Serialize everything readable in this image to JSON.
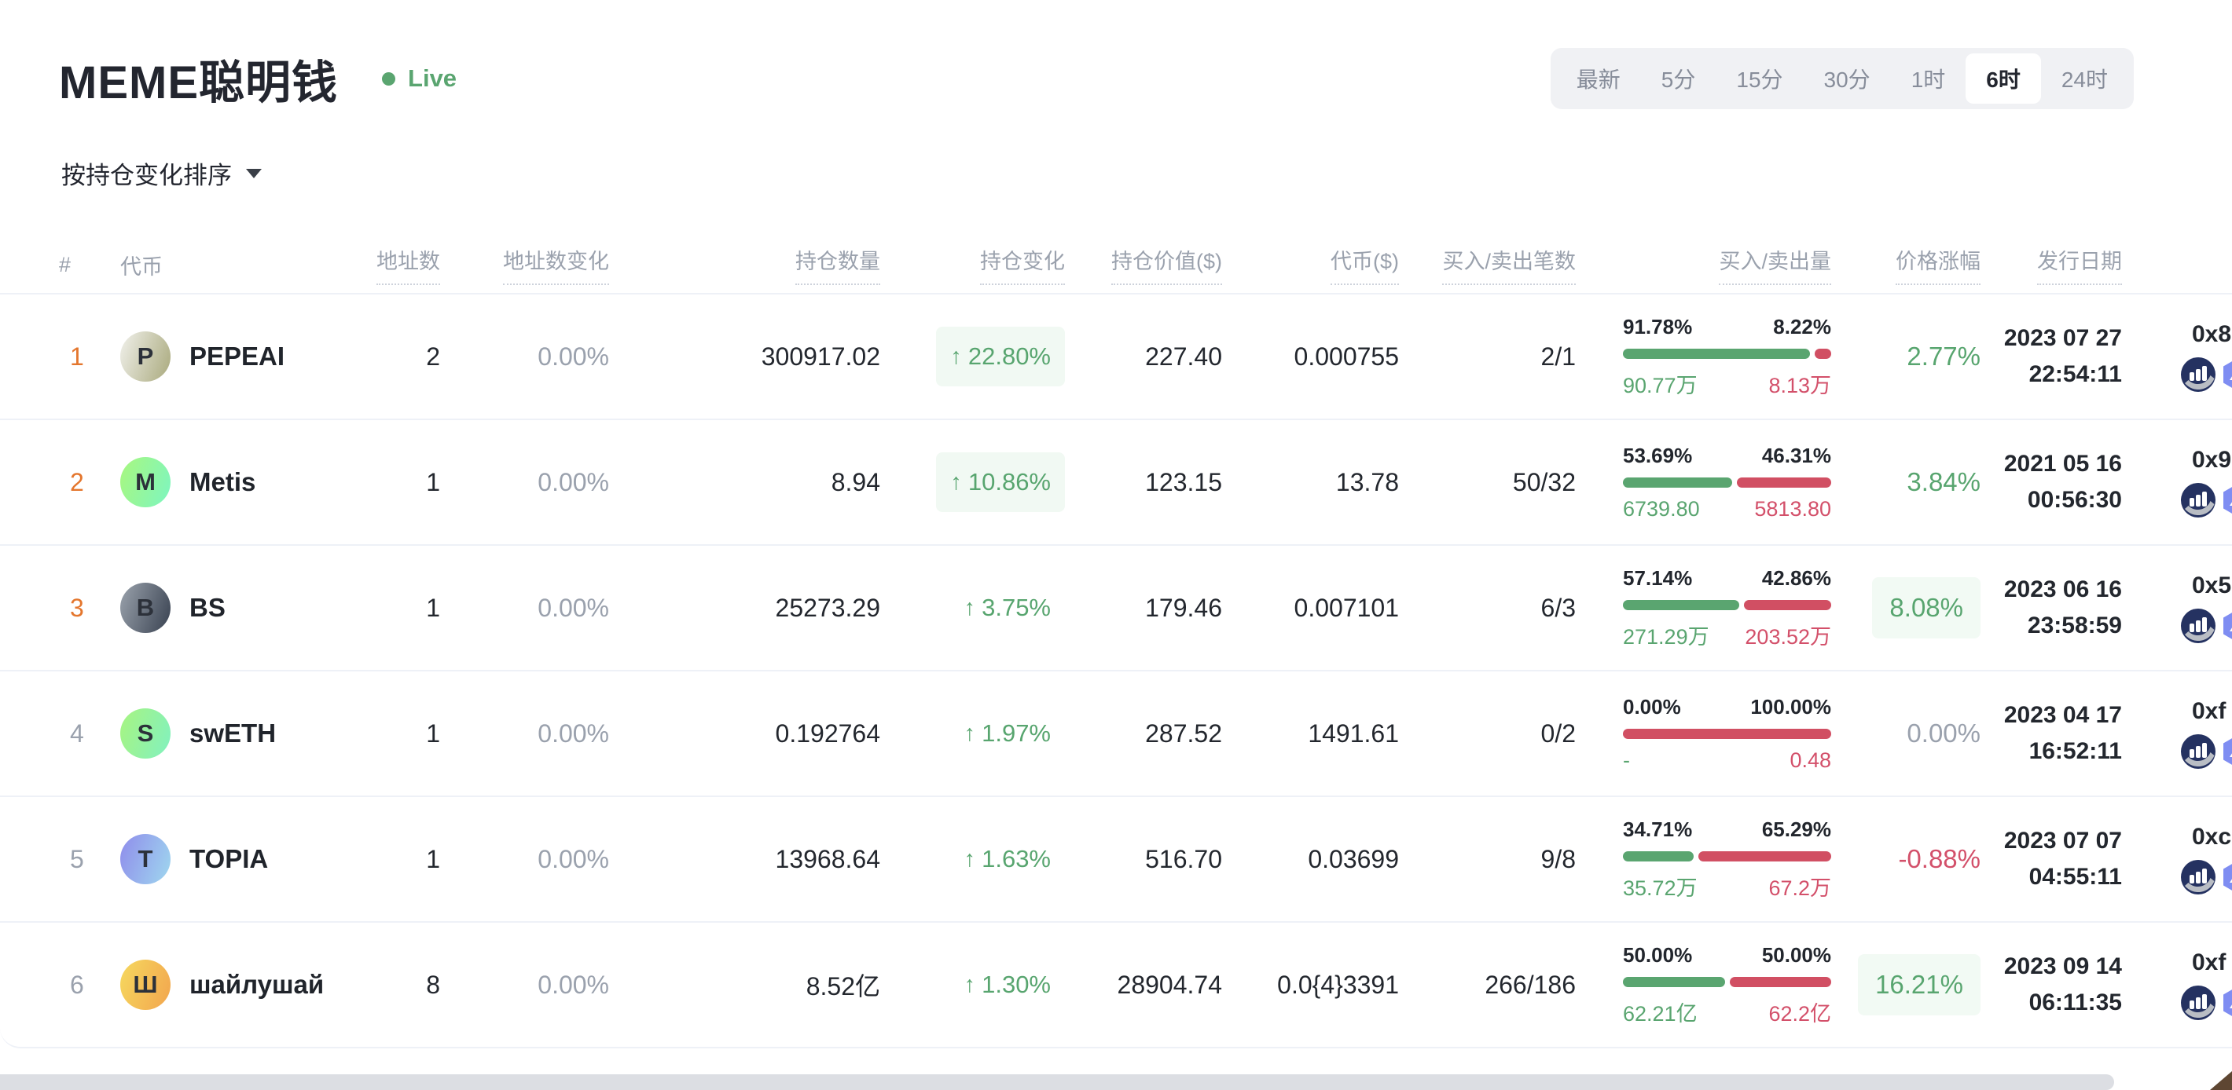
{
  "page": {
    "title": "MEME聪明钱",
    "live": "Live",
    "sort_label": "按持仓变化排序",
    "time_filters": {
      "options": [
        "最新",
        "5分",
        "15分",
        "30分",
        "1时",
        "6时",
        "24时"
      ],
      "active": "6时"
    }
  },
  "table": {
    "headers": {
      "rank": "#",
      "token": "代币",
      "addresses": "地址数",
      "address_change": "地址数变化",
      "holding_qty": "持仓数量",
      "holding_change": "持仓变化",
      "holding_value": "持仓价值($)",
      "token_price": "代币($)",
      "buy_sell_txns": "买入/卖出笔数",
      "buy_sell_volume": "买入/卖出量",
      "price_change": "价格涨幅",
      "launch_date": "发行日期"
    },
    "rows": [
      {
        "rank": "1",
        "token": {
          "letter": "P",
          "name": "PEPEAI",
          "avatar_colors": [
            "#f1f1ec",
            "#a9a97c"
          ]
        },
        "addresses": "2",
        "address_change": "0.00%",
        "holding_qty": "300917.02",
        "holding_change": {
          "value": "22.80%",
          "highlight": true
        },
        "holding_value": "227.40",
        "token_price": "0.000755",
        "buy_sell_txns": "2/1",
        "volume": {
          "buy_pct": "91.78%",
          "sell_pct": "8.22%",
          "buy_amount": "90.77万",
          "sell_amount": "8.13万"
        },
        "price_change": {
          "value": "2.77%",
          "tone": "green",
          "highlight": false
        },
        "launch": {
          "date": "2023 07 27",
          "time": "22:54:11"
        },
        "address": "0x8"
      },
      {
        "rank": "2",
        "token": {
          "letter": "M",
          "name": "Metis",
          "avatar_colors": [
            "#a9f77e",
            "#7df6c1"
          ]
        },
        "addresses": "1",
        "address_change": "0.00%",
        "holding_qty": "8.94",
        "holding_change": {
          "value": "10.86%",
          "highlight": true
        },
        "holding_value": "123.15",
        "token_price": "13.78",
        "buy_sell_txns": "50/32",
        "volume": {
          "buy_pct": "53.69%",
          "sell_pct": "46.31%",
          "buy_amount": "6739.80",
          "sell_amount": "5813.80"
        },
        "price_change": {
          "value": "3.84%",
          "tone": "green",
          "highlight": false
        },
        "launch": {
          "date": "2021 05 16",
          "time": "00:56:30"
        },
        "address": "0x9"
      },
      {
        "rank": "3",
        "token": {
          "letter": "B",
          "name": "BS",
          "avatar_colors": [
            "#9ba3ad",
            "#384150"
          ]
        },
        "addresses": "1",
        "address_change": "0.00%",
        "holding_qty": "25273.29",
        "holding_change": {
          "value": "3.75%",
          "highlight": false
        },
        "holding_value": "179.46",
        "token_price": "0.007101",
        "buy_sell_txns": "6/3",
        "volume": {
          "buy_pct": "57.14%",
          "sell_pct": "42.86%",
          "buy_amount": "271.29万",
          "sell_amount": "203.52万"
        },
        "price_change": {
          "value": "8.08%",
          "tone": "green",
          "highlight": true
        },
        "launch": {
          "date": "2023 06 16",
          "time": "23:58:59"
        },
        "address": "0x5"
      },
      {
        "rank": "4",
        "token": {
          "letter": "S",
          "name": "swETH",
          "avatar_colors": [
            "#a8f480",
            "#81f1c0"
          ]
        },
        "addresses": "1",
        "address_change": "0.00%",
        "holding_qty": "0.192764",
        "holding_change": {
          "value": "1.97%",
          "highlight": false
        },
        "holding_value": "287.52",
        "token_price": "1491.61",
        "buy_sell_txns": "0/2",
        "volume": {
          "buy_pct": "0.00%",
          "sell_pct": "100.00%",
          "buy_amount": "-",
          "sell_amount": "0.48"
        },
        "price_change": {
          "value": "0.00%",
          "tone": "gray",
          "highlight": false
        },
        "launch": {
          "date": "2023 04 17",
          "time": "16:52:11"
        },
        "address": "0xf"
      },
      {
        "rank": "5",
        "token": {
          "letter": "T",
          "name": "TOPIA",
          "avatar_colors": [
            "#8f8ceb",
            "#9fd8ef"
          ]
        },
        "addresses": "1",
        "address_change": "0.00%",
        "holding_qty": "13968.64",
        "holding_change": {
          "value": "1.63%",
          "highlight": false
        },
        "holding_value": "516.70",
        "token_price": "0.03699",
        "buy_sell_txns": "9/8",
        "volume": {
          "buy_pct": "34.71%",
          "sell_pct": "65.29%",
          "buy_amount": "35.72万",
          "sell_amount": "67.2万"
        },
        "price_change": {
          "value": "-0.88%",
          "tone": "red",
          "highlight": false
        },
        "launch": {
          "date": "2023 07 07",
          "time": "04:55:11"
        },
        "address": "0xc"
      },
      {
        "rank": "6",
        "token": {
          "letter": "Ш",
          "name": "шайлушай",
          "avatar_colors": [
            "#f6d95f",
            "#f2a54e"
          ]
        },
        "addresses": "8",
        "address_change": "0.00%",
        "holding_qty": "8.52亿",
        "holding_change": {
          "value": "1.30%",
          "highlight": false
        },
        "holding_value": "28904.74",
        "token_price": "0.0{4}3391",
        "buy_sell_txns": "266/186",
        "volume": {
          "buy_pct": "50.00%",
          "sell_pct": "50.00%",
          "buy_amount": "62.21亿",
          "sell_amount": "62.2亿"
        },
        "price_change": {
          "value": "16.21%",
          "tone": "green",
          "highlight": true
        },
        "launch": {
          "date": "2023 09 14",
          "time": "06:11:35"
        },
        "address": "0xf"
      }
    ]
  },
  "icons": {
    "live_dot": "●",
    "up_arrow": "↑",
    "row_links": [
      "bar-chart-badge-icon",
      "hexagon-explorer-icon"
    ]
  },
  "colors": {
    "green": "#58a56f",
    "red": "#d3506a",
    "orange_rank": "#e4762d",
    "muted": "#9aa1ad",
    "chip_bg": "#f1f9f3",
    "bar_green": "#5aa570",
    "bar_red": "#d14f63"
  }
}
